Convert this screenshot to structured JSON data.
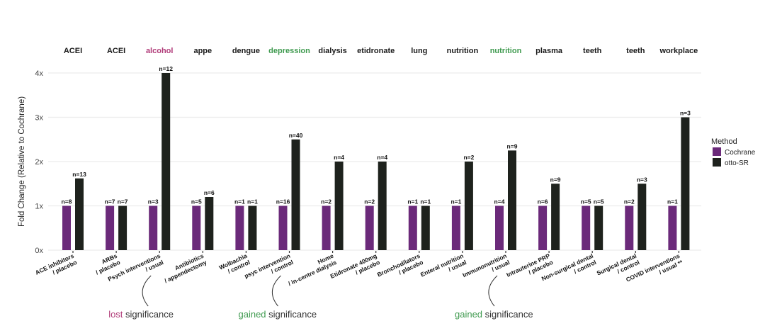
{
  "chart_data": {
    "type": "bar",
    "title": "",
    "xlabel": "",
    "ylabel": "Fold Change (Relative to Cochrane)",
    "ylim": [
      0,
      4
    ],
    "yticks": [
      "0x",
      "1x",
      "2x",
      "3x",
      "4x"
    ],
    "grid": true,
    "legend": {
      "title": "Method",
      "position": "right",
      "entries": [
        {
          "name": "Cochrane",
          "color": "#6b2a7a"
        },
        {
          "name": "otto-SR",
          "color": "#1e221d"
        }
      ]
    },
    "facets": [
      {
        "facet": "ACEI",
        "facet_color": "#1a1a1a",
        "category": [
          "ACE inhibitors",
          "/ placebo"
        ],
        "cochrane": 1,
        "cochrane_n": "n=8",
        "otto": 1.62,
        "otto_n": "n=13"
      },
      {
        "facet": "ACEI",
        "facet_color": "#1a1a1a",
        "category": [
          "ARBs",
          "/ placebo"
        ],
        "cochrane": 1,
        "cochrane_n": "n=7",
        "otto": 1,
        "otto_n": "n=7"
      },
      {
        "facet": "alcohol",
        "facet_color": "#b03a78",
        "category": [
          "Psych interventions",
          "/ usual"
        ],
        "cochrane": 1,
        "cochrane_n": "n=3",
        "otto": 4,
        "otto_n": "n=12"
      },
      {
        "facet": "appe",
        "facet_color": "#1a1a1a",
        "category": [
          "Antibiotics",
          "/ appendectomy"
        ],
        "cochrane": 1,
        "cochrane_n": "n=5",
        "otto": 1.2,
        "otto_n": "n=6"
      },
      {
        "facet": "dengue",
        "facet_color": "#1a1a1a",
        "category": [
          "Wolbachia",
          "/ control"
        ],
        "cochrane": 1,
        "cochrane_n": "n=1",
        "otto": 1,
        "otto_n": "n=1"
      },
      {
        "facet": "depression",
        "facet_color": "#3f9a4f",
        "category": [
          "psyc intervention",
          "/ control"
        ],
        "cochrane": 1,
        "cochrane_n": "n=16",
        "otto": 2.5,
        "otto_n": "n=40"
      },
      {
        "facet": "dialysis",
        "facet_color": "#1a1a1a",
        "category": [
          "Home",
          "/ in-centre dialysis"
        ],
        "cochrane": 1,
        "cochrane_n": "n=2",
        "otto": 2,
        "otto_n": "n=4"
      },
      {
        "facet": "etidronate",
        "facet_color": "#1a1a1a",
        "category": [
          "Etidronate 400mg",
          "/ placebo"
        ],
        "cochrane": 1,
        "cochrane_n": "n=2",
        "otto": 2,
        "otto_n": "n=4"
      },
      {
        "facet": "lung",
        "facet_color": "#1a1a1a",
        "category": [
          "Bronchodilators",
          "/ placebo"
        ],
        "cochrane": 1,
        "cochrane_n": "n=1",
        "otto": 1,
        "otto_n": "n=1"
      },
      {
        "facet": "nutrition",
        "facet_color": "#1a1a1a",
        "category": [
          "Enteral nutrition",
          "/ usual"
        ],
        "cochrane": 1,
        "cochrane_n": "n=1",
        "otto": 2,
        "otto_n": "n=2"
      },
      {
        "facet": "nutrition",
        "facet_color": "#3f9a4f",
        "category": [
          "Immunonutrition",
          "/ usual"
        ],
        "cochrane": 1,
        "cochrane_n": "n=4",
        "otto": 2.25,
        "otto_n": "n=9"
      },
      {
        "facet": "plasma",
        "facet_color": "#1a1a1a",
        "category": [
          "Intrauterine PRP",
          "/ placebo"
        ],
        "cochrane": 1,
        "cochrane_n": "n=6",
        "otto": 1.5,
        "otto_n": "n=9"
      },
      {
        "facet": "teeth",
        "facet_color": "#1a1a1a",
        "category": [
          "Non-surgical dental",
          "/ control"
        ],
        "cochrane": 1,
        "cochrane_n": "n=5",
        "otto": 1,
        "otto_n": "n=5"
      },
      {
        "facet": "teeth",
        "facet_color": "#1a1a1a",
        "category": [
          "Surgical dental",
          "/ control"
        ],
        "cochrane": 1,
        "cochrane_n": "n=2",
        "otto": 1.5,
        "otto_n": "n=3"
      },
      {
        "facet": "workplace",
        "facet_color": "#1a1a1a",
        "category": [
          "COVID interventions",
          "/ usual **"
        ],
        "cochrane": 1,
        "cochrane_n": "n=1",
        "otto": 3,
        "otto_n": "n=3"
      }
    ],
    "categories": [
      "ACE inhibitors / placebo",
      "ARBs / placebo",
      "Psych interventions / usual",
      "Antibiotics / appendectomy",
      "Wolbachia / control",
      "psyc intervention / control",
      "Home / in-centre dialysis",
      "Etidronate 400mg / placebo",
      "Bronchodilators / placebo",
      "Enteral nutrition / usual",
      "Immunonutrition / usual",
      "Intrauterine PRP / placebo",
      "Non-surgical dental / control",
      "Surgical dental / control",
      "COVID interventions / usual **"
    ],
    "series": [
      {
        "name": "Cochrane",
        "values": [
          1,
          1,
          1,
          1,
          1,
          1,
          1,
          1,
          1,
          1,
          1,
          1,
          1,
          1,
          1
        ]
      },
      {
        "name": "otto-SR",
        "values": [
          1.62,
          1,
          4,
          1.2,
          1,
          2.5,
          2,
          2,
          1,
          2,
          2.25,
          1.5,
          1,
          1.5,
          3
        ]
      }
    ],
    "annotations": [
      {
        "target_index": 2,
        "prefix": "lost",
        "prefix_color": "#b03a78",
        "suffix": " significance"
      },
      {
        "target_index": 5,
        "prefix": "gained",
        "prefix_color": "#3f9a4f",
        "suffix": " significance"
      },
      {
        "target_index": 10,
        "prefix": "gained",
        "prefix_color": "#3f9a4f",
        "suffix": " significance"
      }
    ]
  }
}
